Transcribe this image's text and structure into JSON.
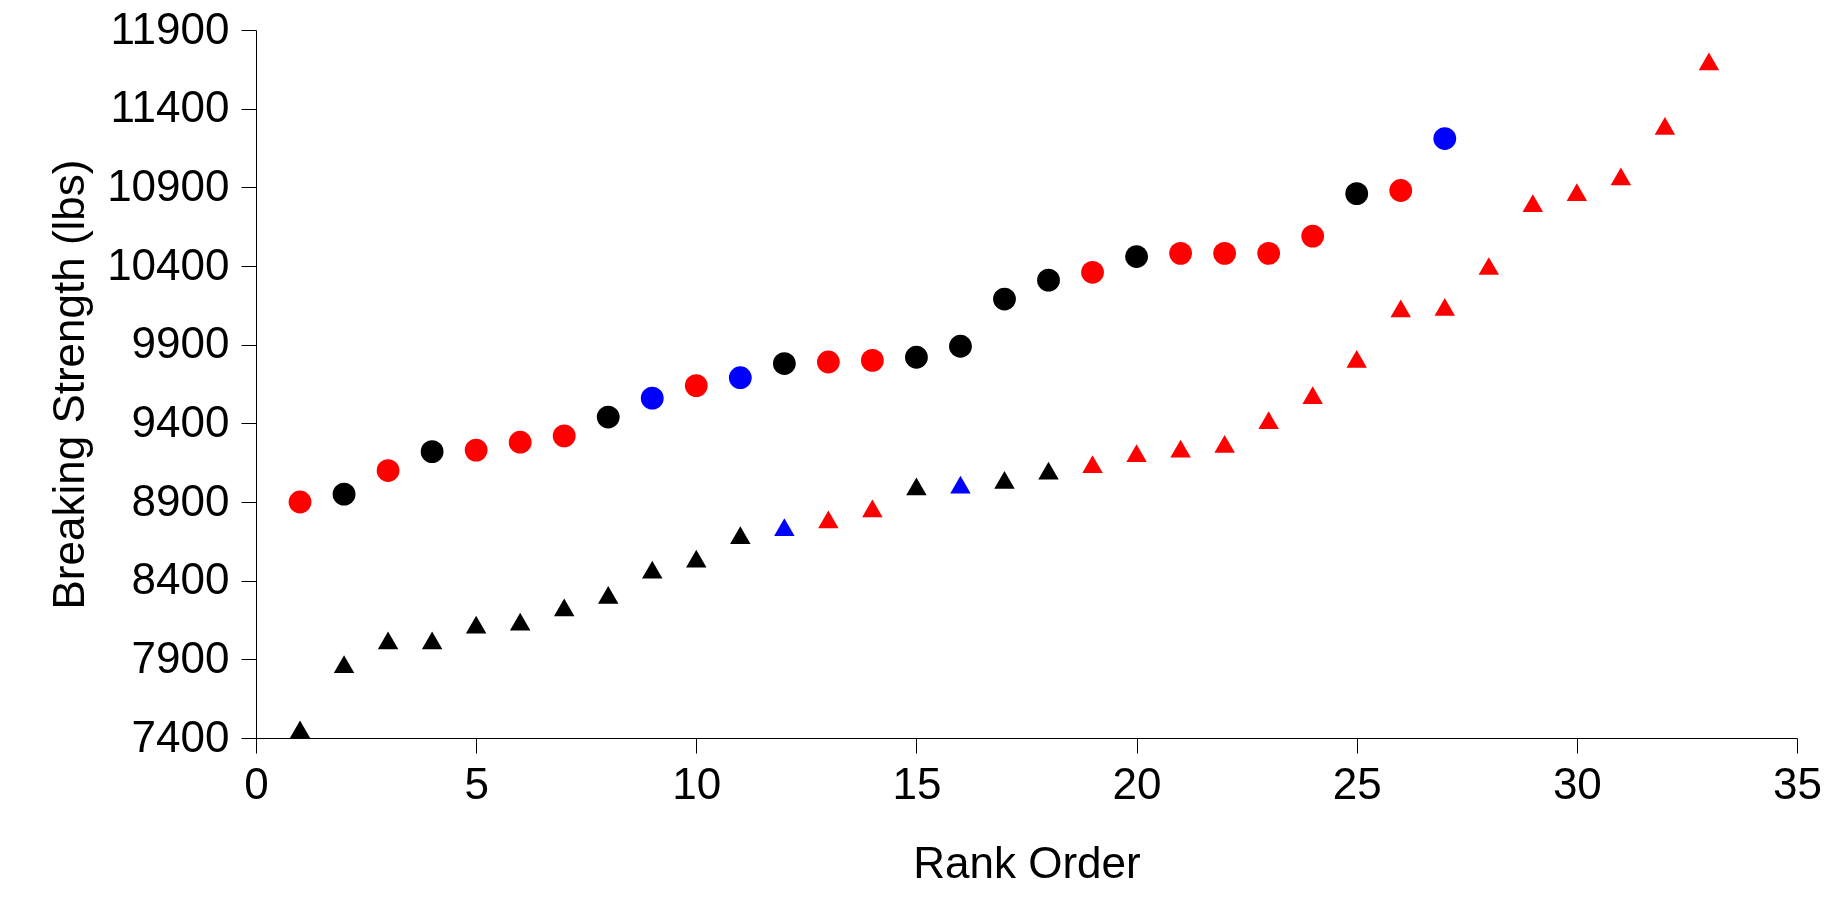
{
  "chart_data": {
    "type": "scatter",
    "xlabel": "Rank Order",
    "ylabel": "Breaking Strength (lbs)",
    "xlim": [
      0,
      35
    ],
    "xticks": [
      0,
      5,
      10,
      15,
      20,
      25,
      30,
      35
    ],
    "ylim": [
      7400,
      11900
    ],
    "yticks": [
      7400,
      7900,
      8400,
      8900,
      9400,
      9900,
      10400,
      10900,
      11400,
      11900
    ],
    "grid": false,
    "series": [
      {
        "marker": "circle",
        "x": [
          1,
          2,
          3,
          4,
          5,
          6,
          7,
          8,
          9,
          10,
          11,
          12,
          13,
          14,
          15,
          16,
          17,
          18,
          19,
          20,
          21,
          22,
          23,
          24,
          25,
          26,
          27
        ],
        "values": [
          8900,
          8950,
          9100,
          9220,
          9230,
          9280,
          9320,
          9440,
          9560,
          9640,
          9690,
          9780,
          9790,
          9800,
          9820,
          9890,
          10190,
          10310,
          10360,
          10460,
          10480,
          10480,
          10480,
          10590,
          10860,
          10880,
          11210
        ],
        "colors": [
          "#ff0000",
          "#000000",
          "#ff0000",
          "#000000",
          "#ff0000",
          "#ff0000",
          "#ff0000",
          "#000000",
          "#0000ff",
          "#ff0000",
          "#0000ff",
          "#000000",
          "#ff0000",
          "#ff0000",
          "#000000",
          "#000000",
          "#000000",
          "#000000",
          "#ff0000",
          "#000000",
          "#ff0000",
          "#ff0000",
          "#ff0000",
          "#ff0000",
          "#000000",
          "#ff0000",
          "#0000ff"
        ]
      },
      {
        "marker": "triangle",
        "x": [
          1,
          2,
          3,
          4,
          5,
          6,
          7,
          8,
          9,
          10,
          11,
          12,
          13,
          14,
          15,
          16,
          17,
          18,
          19,
          20,
          21,
          22,
          23,
          24,
          25,
          26,
          27,
          28,
          29,
          30,
          31,
          32,
          33
        ],
        "values": [
          7455,
          7870,
          8020,
          8020,
          8120,
          8140,
          8230,
          8310,
          8470,
          8540,
          8690,
          8740,
          8790,
          8860,
          9000,
          9010,
          9040,
          9100,
          9140,
          9210,
          9240,
          9270,
          9420,
          9580,
          9810,
          10130,
          10140,
          10400,
          10800,
          10870,
          10970,
          11290,
          11700
        ],
        "colors": [
          "#000000",
          "#000000",
          "#000000",
          "#000000",
          "#000000",
          "#000000",
          "#000000",
          "#000000",
          "#000000",
          "#000000",
          "#000000",
          "#0000ff",
          "#ff0000",
          "#ff0000",
          "#000000",
          "#0000ff",
          "#000000",
          "#000000",
          "#ff0000",
          "#ff0000",
          "#ff0000",
          "#ff0000",
          "#ff0000",
          "#ff0000",
          "#ff0000",
          "#ff0000",
          "#ff0000",
          "#ff0000",
          "#ff0000",
          "#ff0000",
          "#ff0000",
          "#ff0000",
          "#ff0000"
        ]
      }
    ]
  }
}
